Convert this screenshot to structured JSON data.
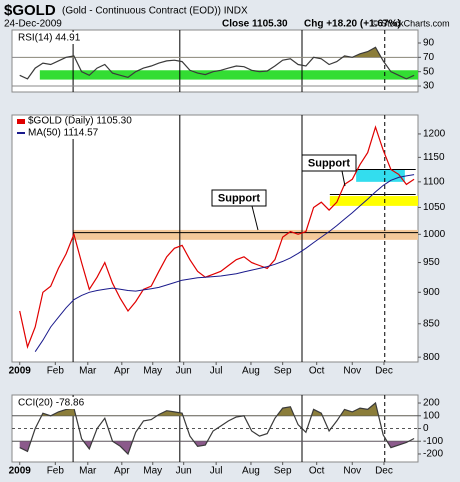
{
  "header": {
    "symbol": "$GOLD",
    "description": "(Gold - Continuous Contract (EOD)) INDX",
    "date": "24-Dec-2009",
    "close": "Close 1105.30",
    "change": "Chg +18.20 (+1.67%)",
    "credit": "© StockCharts.com"
  },
  "chart_data": [
    {
      "type": "line",
      "title": "RSI(14) 44.91",
      "x": [
        1,
        2,
        3,
        4,
        5,
        6,
        7,
        8,
        9,
        10,
        11,
        12,
        13,
        14,
        15,
        16,
        17,
        18,
        19,
        20,
        21,
        22,
        23,
        24,
        25,
        26,
        27,
        28,
        29,
        30,
        31,
        32,
        33,
        34,
        35,
        36,
        37,
        38,
        39,
        40,
        41,
        42,
        43,
        44,
        45,
        46,
        47,
        48,
        49,
        50,
        51,
        52
      ],
      "xlim": [
        0,
        52.5
      ],
      "ylim": [
        21.7,
        108.1
      ],
      "yticks": [
        90,
        70,
        50,
        30
      ],
      "series": [
        {
          "color": "#3a3a3a",
          "values": [
            45,
            40,
            55,
            62,
            60,
            65,
            70,
            72,
            50,
            45,
            55,
            60,
            48,
            45,
            42,
            50,
            55,
            58,
            62,
            65,
            66,
            64,
            52,
            48,
            46,
            50,
            52,
            55,
            58,
            57,
            52,
            50,
            51,
            58,
            66,
            68,
            60,
            58,
            70,
            68,
            60,
            64,
            72,
            70,
            75,
            78,
            84,
            65,
            50,
            45,
            40,
            44.91
          ]
        }
      ],
      "zones": [
        {
          "from": 39,
          "to": 52,
          "x0": 3.6,
          "x1": 52.5,
          "color": "#33dd33"
        }
      ],
      "hlines": [
        {
          "value": 70,
          "color": "#888888"
        },
        {
          "value": 30,
          "color": "#888888"
        }
      ],
      "fills": [
        {
          "color": "#8b7d3a"
        },
        {
          "color": "#8b5a8b"
        }
      ],
      "vlines": [
        {
          "x": 7.9
        },
        {
          "x": 21.7
        },
        {
          "x": 37.5
        },
        {
          "x": 48.2,
          "dash": true
        }
      ]
    },
    {
      "type": "line",
      "log": true,
      "x": [
        1,
        2,
        3,
        4,
        5,
        6,
        7,
        8,
        9,
        10,
        11,
        12,
        13,
        14,
        15,
        16,
        17,
        18,
        19,
        20,
        21,
        22,
        23,
        24,
        25,
        26,
        27,
        28,
        29,
        30,
        31,
        32,
        33,
        34,
        35,
        36,
        37,
        38,
        39,
        40,
        41,
        42,
        43,
        44,
        45,
        46,
        47,
        48,
        49,
        50,
        51,
        52
      ],
      "xlim": [
        0,
        52.5
      ],
      "ylim": [
        793,
        1242
      ],
      "yticks": [
        800,
        850,
        900,
        950,
        1000,
        1050,
        1100,
        1150,
        1200
      ],
      "xticks": [
        {
          "value": 1.0,
          "label": "2009"
        },
        {
          "value": 5.6,
          "label": "Feb"
        },
        {
          "value": 9.8,
          "label": "Mar"
        },
        {
          "value": 14.2,
          "label": "Apr"
        },
        {
          "value": 18.2,
          "label": "May"
        },
        {
          "value": 22.2,
          "label": "Jun"
        },
        {
          "value": 26.4,
          "label": "Jul"
        },
        {
          "value": 30.9,
          "label": "Aug"
        },
        {
          "value": 35.0,
          "label": "Sep"
        },
        {
          "value": 39.4,
          "label": "Oct"
        },
        {
          "value": 44.0,
          "label": "Nov"
        },
        {
          "value": 48.1,
          "label": "Dec"
        }
      ],
      "series": [
        {
          "name": "$GOLD (Daily) 1105.30",
          "color": "#e00000",
          "values": [
            870,
            815,
            845,
            900,
            910,
            940,
            965,
            1000,
            950,
            905,
            925,
            950,
            915,
            890,
            870,
            885,
            905,
            910,
            935,
            960,
            975,
            980,
            955,
            935,
            925,
            930,
            935,
            945,
            955,
            960,
            950,
            945,
            940,
            955,
            995,
            1005,
            1000,
            1005,
            1050,
            1060,
            1045,
            1060,
            1095,
            1105,
            1135,
            1160,
            1215,
            1165,
            1125,
            1115,
            1095,
            1105.3
          ]
        },
        {
          "name": "MA(50) 1114.57",
          "color": "#1a1a8c",
          "values": [
            null,
            null,
            808,
            825,
            845,
            860,
            875,
            888,
            895,
            900,
            903,
            905,
            907,
            905,
            903,
            902,
            904,
            906,
            908,
            912,
            916,
            920,
            922,
            924,
            925,
            926,
            927,
            929,
            931,
            934,
            937,
            940,
            943,
            947,
            952,
            958,
            966,
            975,
            985,
            995,
            1005,
            1016,
            1028,
            1040,
            1053,
            1066,
            1080,
            1093,
            1103,
            1109,
            1112,
            1114.57
          ]
        }
      ],
      "zones": [
        {
          "from": 990,
          "to": 1008,
          "x0": 7.9,
          "x1": 52.5,
          "color": "#f4c99a"
        },
        {
          "from": 1053,
          "to": 1072,
          "x0": 41.1,
          "x1": 52.5,
          "color": "#ffff00"
        },
        {
          "from": 1100,
          "to": 1125,
          "x0": 44.5,
          "x1": 50.8,
          "color": "#33ddee"
        }
      ],
      "hlines": [
        {
          "value": 1003,
          "x0": 7.9,
          "x1": 52.5,
          "color": "#000000"
        },
        {
          "value": 1075,
          "x0": 41.1,
          "x1": 52.2,
          "color": "#000000"
        },
        {
          "value": 1125,
          "x0": 44.5,
          "x1": 52.2,
          "color": "#000000"
        }
      ],
      "vlines": [
        {
          "x": 7.9
        },
        {
          "x": 21.7
        },
        {
          "x": 37.5
        },
        {
          "x": 48.2,
          "dash": true
        }
      ],
      "annotations": [
        {
          "text": "Support"
        },
        {
          "text": "Support"
        }
      ]
    },
    {
      "type": "line",
      "title": "CCI(20) -78.86",
      "x": [
        1,
        2,
        3,
        4,
        5,
        6,
        7,
        8,
        9,
        10,
        11,
        12,
        13,
        14,
        15,
        16,
        17,
        18,
        19,
        20,
        21,
        22,
        23,
        24,
        25,
        26,
        27,
        28,
        29,
        30,
        31,
        32,
        33,
        34,
        35,
        36,
        37,
        38,
        39,
        40,
        41,
        42,
        43,
        44,
        45,
        46,
        47,
        48,
        49,
        50,
        51,
        52
      ],
      "xlim": [
        0,
        52.5
      ],
      "ylim": [
        -263,
        263
      ],
      "yticks": [
        200,
        100,
        0,
        -100,
        -200
      ],
      "xticks": [
        {
          "value": 1.0,
          "label": "2009"
        },
        {
          "value": 5.6,
          "label": "Feb"
        },
        {
          "value": 9.8,
          "label": "Mar"
        },
        {
          "value": 14.2,
          "label": "Apr"
        },
        {
          "value": 18.2,
          "label": "May"
        },
        {
          "value": 22.2,
          "label": "Jun"
        },
        {
          "value": 26.4,
          "label": "Jul"
        },
        {
          "value": 30.9,
          "label": "Aug"
        },
        {
          "value": 35.0,
          "label": "Sep"
        },
        {
          "value": 39.4,
          "label": "Oct"
        },
        {
          "value": 44.0,
          "label": "Nov"
        },
        {
          "value": 48.1,
          "label": "Dec"
        }
      ],
      "series": [
        {
          "color": "#3a3a3a",
          "values": [
            -150,
            -180,
            0,
            120,
            100,
            130,
            150,
            160,
            -80,
            -160,
            0,
            80,
            -100,
            -140,
            -200,
            -30,
            60,
            70,
            110,
            140,
            130,
            120,
            -60,
            -140,
            -130,
            -20,
            20,
            60,
            90,
            100,
            -20,
            -60,
            -40,
            80,
            160,
            170,
            30,
            -30,
            150,
            120,
            -20,
            60,
            150,
            130,
            160,
            150,
            200,
            -50,
            -150,
            -130,
            -110,
            -78.86
          ]
        }
      ],
      "hlines": [
        {
          "value": 100,
          "color": "#555555"
        },
        {
          "value": 0,
          "color": "#555555",
          "dash": true
        },
        {
          "value": -100,
          "color": "#555555"
        }
      ],
      "fills": [
        {
          "color": "#8b7d3a"
        },
        {
          "color": "#8b5a8b"
        }
      ],
      "vlines": [
        {
          "x": 7.9
        },
        {
          "x": 21.7
        },
        {
          "x": 37.5
        },
        {
          "x": 48.2,
          "dash": true
        }
      ]
    }
  ]
}
